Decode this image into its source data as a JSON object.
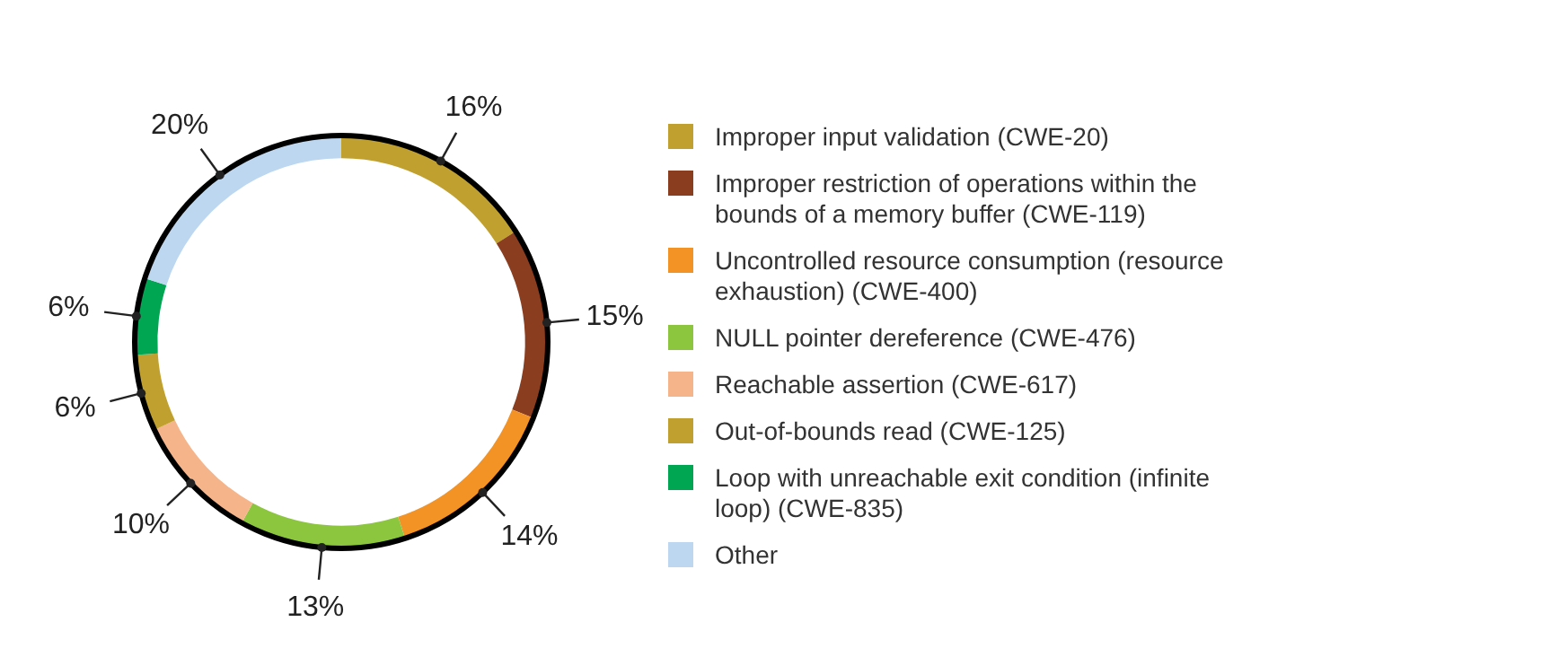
{
  "chart_data": {
    "type": "donut",
    "categories": [
      "Improper input validation (CWE-20)",
      "Improper restriction of operations within the bounds of a memory buffer (CWE-119)",
      "Uncontrolled resource consumption (resource exhaustion) (CWE-400)",
      "NULL pointer dereference (CWE-476)",
      "Reachable assertion (CWE-617)",
      "Out-of-bounds read (CWE-125)",
      "Loop with unreachable exit condition (infinite loop) (CWE-835)",
      "Other"
    ],
    "values": [
      16,
      15,
      14,
      13,
      10,
      6,
      6,
      20
    ],
    "colors": [
      "#c0a12f",
      "#8b3d1f",
      "#f39325",
      "#8cc63f",
      "#f5b48a",
      "#c0a12f",
      "#00a651",
      "#bcd7ef"
    ],
    "value_labels": [
      "16%",
      "15%",
      "14%",
      "13%",
      "10%",
      "6%",
      "6%",
      "20%"
    ],
    "legend": "right"
  }
}
